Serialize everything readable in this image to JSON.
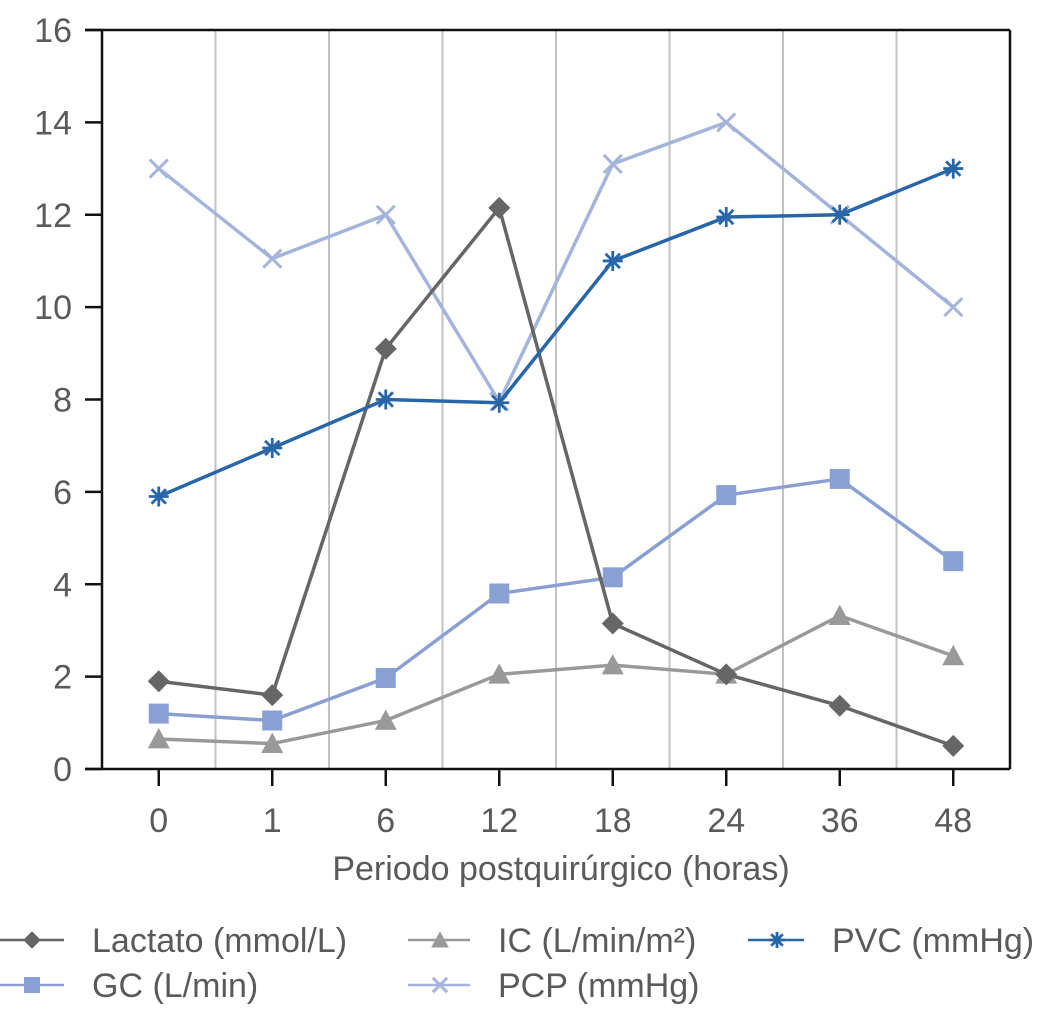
{
  "chart_data": {
    "type": "line",
    "title": "",
    "xlabel": "Periodo postquirúrgico (horas)",
    "ylabel": "",
    "categories": [
      "0",
      "1",
      "6",
      "12",
      "18",
      "24",
      "36",
      "48"
    ],
    "ylim": [
      0,
      16
    ],
    "yticks": [
      0,
      2,
      4,
      6,
      8,
      10,
      12,
      14,
      16
    ],
    "grid": "vertical lines between categories",
    "legend_position": "bottom",
    "series": [
      {
        "name": "Lactato (mmol/L)",
        "marker": "diamond",
        "color": "#666666",
        "values": [
          1.9,
          1.6,
          9.1,
          12.15,
          3.15,
          2.05,
          1.37,
          0.5
        ]
      },
      {
        "name": "GC (L/min)",
        "marker": "square",
        "color": "#8aa0d2",
        "values": [
          1.2,
          1.05,
          1.97,
          3.8,
          4.15,
          5.93,
          6.28,
          4.5
        ]
      },
      {
        "name": "IC (L/min/m²)",
        "marker": "triangle",
        "color": "#999999",
        "values": [
          0.65,
          0.55,
          1.05,
          2.05,
          2.25,
          2.05,
          3.32,
          2.45
        ]
      },
      {
        "name": "PCP (mmHg)",
        "marker": "x",
        "color": "#a5b4da",
        "values": [
          13.0,
          11.05,
          12.0,
          7.95,
          13.1,
          14.0,
          12.0,
          10.0
        ]
      },
      {
        "name": "PVC (mmHg)",
        "marker": "asterisk",
        "color": "#2866a8",
        "values": [
          5.9,
          6.95,
          8.0,
          7.93,
          11.0,
          11.95,
          12.0,
          13.0
        ]
      }
    ]
  }
}
